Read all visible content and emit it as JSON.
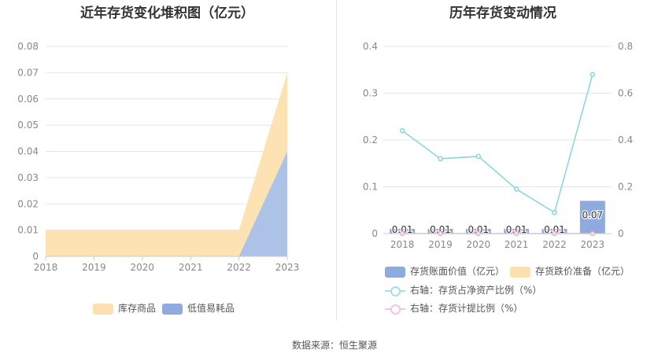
{
  "titles": {
    "left": "近年存货变化堆积图（亿元）",
    "right": "历年存货变动情况"
  },
  "source": "数据来源：恒生聚源",
  "colors": {
    "kucun": "#fde0b0",
    "dizhi": "#a9bfe6",
    "bar": "#8eaadf",
    "line_ratio": "#86d6dc",
    "line_provision": "#f2a7cb",
    "axis_text": "#888888",
    "grid": "#e6e6e6"
  },
  "chart_data": [
    {
      "type": "area",
      "stacked": true,
      "title": "近年存货变化堆积图（亿元）",
      "categories": [
        "2018",
        "2019",
        "2020",
        "2021",
        "2022",
        "2023"
      ],
      "yticks": [
        "0",
        "0.01",
        "0.02",
        "0.03",
        "0.04",
        "0.05",
        "0.06",
        "0.07",
        "0.08"
      ],
      "ylim": [
        0,
        0.08
      ],
      "grid": true,
      "legend_position": "bottom",
      "series": [
        {
          "name": "库存商品",
          "values": [
            0.01,
            0.01,
            0.01,
            0.01,
            0.01,
            0.03
          ]
        },
        {
          "name": "低值易耗品",
          "values": [
            0,
            0,
            0,
            0,
            0,
            0.04
          ]
        }
      ]
    },
    {
      "type": "bar",
      "title": "历年存货变动情况",
      "categories": [
        "2018",
        "2019",
        "2020",
        "2021",
        "2022",
        "2023"
      ],
      "ylim_left": [
        0,
        0.4
      ],
      "ylim_right": [
        0,
        0.8
      ],
      "yticks_left": [
        "0",
        "0.1",
        "0.2",
        "0.3",
        "0.4"
      ],
      "yticks_right": [
        "0",
        "0.2",
        "0.4",
        "0.6",
        "0.8"
      ],
      "grid": true,
      "legend_position": "bottom",
      "series": [
        {
          "name": "存货账面价值（亿元）",
          "kind": "bar",
          "axis": "left",
          "values": [
            0.01,
            0.01,
            0.01,
            0.01,
            0.01,
            0.07
          ],
          "labels": [
            "0.01",
            "0.01",
            "0.01",
            "0.01",
            "0.01",
            "0.07"
          ]
        },
        {
          "name": "存货跌价准备（亿元）",
          "kind": "bar",
          "axis": "left",
          "values": [
            0,
            0,
            0,
            0,
            0,
            0
          ]
        },
        {
          "name": "右轴：存货占净资产比例（%）",
          "kind": "line",
          "axis": "right",
          "values": [
            0.44,
            0.32,
            0.33,
            0.19,
            0.09,
            0.68
          ]
        },
        {
          "name": "右轴：存货计提比例（%）",
          "kind": "line",
          "axis": "right",
          "values": [
            0,
            0,
            0,
            0,
            0,
            0
          ]
        }
      ]
    }
  ]
}
